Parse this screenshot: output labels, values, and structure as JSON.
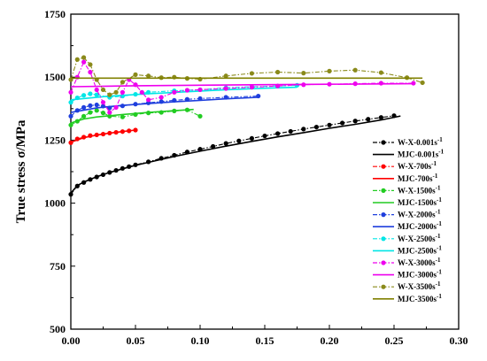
{
  "chart_data": {
    "type": "line",
    "xlabel": "",
    "ylabel": "True stress σ/MPa",
    "xlim": [
      0.0,
      0.3
    ],
    "ylim": [
      500,
      1750
    ],
    "xticks": [
      "0.00",
      "0.05",
      "0.10",
      "0.15",
      "0.20",
      "0.25",
      "0.30"
    ],
    "yticks": [
      "500",
      "750",
      "1000",
      "1250",
      "1500",
      "1750"
    ],
    "grid": false,
    "legend_position": "right",
    "series": [
      {
        "name": "W-X-0.001s",
        "sup": "-1",
        "color": "#000000",
        "style": "dashdot",
        "marker": "circle",
        "x": [
          0.0,
          0.005,
          0.01,
          0.015,
          0.02,
          0.025,
          0.03,
          0.035,
          0.04,
          0.045,
          0.05,
          0.06,
          0.07,
          0.08,
          0.09,
          0.1,
          0.11,
          0.12,
          0.13,
          0.14,
          0.15,
          0.16,
          0.17,
          0.18,
          0.19,
          0.2,
          0.21,
          0.22,
          0.23,
          0.24,
          0.25
        ],
        "y": [
          1035,
          1068,
          1082,
          1094,
          1104,
          1113,
          1122,
          1130,
          1138,
          1145,
          1152,
          1164,
          1178,
          1190,
          1203,
          1214,
          1225,
          1237,
          1247,
          1257,
          1267,
          1276,
          1285,
          1294,
          1302,
          1310,
          1318,
          1326,
          1333,
          1340,
          1347
        ]
      },
      {
        "name": "MJC-0.001s",
        "sup": "-1",
        "color": "#000000",
        "style": "solid",
        "marker": "none",
        "x": [
          0.0,
          0.005,
          0.01,
          0.02,
          0.03,
          0.04,
          0.05,
          0.06,
          0.08,
          0.1,
          0.12,
          0.14,
          0.16,
          0.18,
          0.2,
          0.22,
          0.24,
          0.255
        ],
        "y": [
          1040,
          1070,
          1084,
          1105,
          1122,
          1136,
          1150,
          1162,
          1185,
          1206,
          1226,
          1245,
          1263,
          1280,
          1297,
          1313,
          1330,
          1346
        ]
      },
      {
        "name": "W-X-700s",
        "sup": "-1",
        "color": "#ff0000",
        "style": "dashdot",
        "marker": "circle",
        "x": [
          0.0,
          0.005,
          0.01,
          0.015,
          0.02,
          0.025,
          0.03,
          0.035,
          0.04,
          0.045,
          0.05
        ],
        "y": [
          1240,
          1255,
          1262,
          1268,
          1271,
          1274,
          1278,
          1281,
          1284,
          1287,
          1290
        ]
      },
      {
        "name": "MJC-700s",
        "sup": "-1",
        "color": "#ff0000",
        "style": "solid",
        "marker": "none",
        "x": [
          0.0,
          0.01,
          0.02,
          0.03,
          0.04,
          0.05
        ],
        "y": [
          1242,
          1260,
          1270,
          1278,
          1284,
          1290
        ]
      },
      {
        "name": "W-X-1500s",
        "sup": "-1",
        "color": "#22cc22",
        "style": "dashdot",
        "marker": "circle",
        "x": [
          0.0,
          0.005,
          0.01,
          0.015,
          0.02,
          0.025,
          0.03,
          0.04,
          0.05,
          0.06,
          0.07,
          0.08,
          0.09,
          0.1
        ],
        "y": [
          1310,
          1325,
          1345,
          1360,
          1368,
          1358,
          1345,
          1342,
          1352,
          1358,
          1360,
          1366,
          1370,
          1345
        ]
      },
      {
        "name": "MJC-1500s",
        "sup": "-1",
        "color": "#22cc22",
        "style": "solid",
        "marker": "none",
        "x": [
          0.0,
          0.01,
          0.02,
          0.04,
          0.06,
          0.08,
          0.095
        ],
        "y": [
          1318,
          1334,
          1342,
          1352,
          1360,
          1367,
          1372
        ]
      },
      {
        "name": "W-X-2000s",
        "sup": "-1",
        "color": "#1f3fdd",
        "style": "dashdot",
        "marker": "circle",
        "x": [
          0.0,
          0.005,
          0.01,
          0.015,
          0.02,
          0.025,
          0.03,
          0.04,
          0.05,
          0.06,
          0.07,
          0.08,
          0.09,
          0.1,
          0.12,
          0.145
        ],
        "y": [
          1345,
          1368,
          1380,
          1387,
          1390,
          1385,
          1378,
          1386,
          1393,
          1398,
          1403,
          1408,
          1412,
          1415,
          1420,
          1425
        ]
      },
      {
        "name": "MJC-2000s",
        "sup": "-1",
        "color": "#1f3fdd",
        "style": "solid",
        "marker": "none",
        "x": [
          0.0,
          0.02,
          0.04,
          0.06,
          0.08,
          0.1,
          0.12,
          0.145
        ],
        "y": [
          1360,
          1378,
          1388,
          1395,
          1402,
          1408,
          1414,
          1420
        ]
      },
      {
        "name": "W-X-2500s",
        "sup": "-1",
        "color": "#00e6e6",
        "style": "dashdot",
        "marker": "circle",
        "x": [
          0.0,
          0.005,
          0.01,
          0.015,
          0.02,
          0.03,
          0.04,
          0.05,
          0.06,
          0.08,
          0.1,
          0.12,
          0.14,
          0.16,
          0.175
        ],
        "y": [
          1400,
          1418,
          1428,
          1434,
          1430,
          1420,
          1425,
          1432,
          1440,
          1446,
          1450,
          1458,
          1462,
          1465,
          1468
        ]
      },
      {
        "name": "MJC-2500s",
        "sup": "-1",
        "color": "#00e6e6",
        "style": "solid",
        "marker": "none",
        "x": [
          0.0,
          0.03,
          0.06,
          0.09,
          0.12,
          0.15,
          0.175
        ],
        "y": [
          1410,
          1425,
          1434,
          1442,
          1450,
          1456,
          1460
        ]
      },
      {
        "name": "W-X-3000s",
        "sup": "-1",
        "color": "#ee00ee",
        "style": "dashdot",
        "marker": "circle",
        "x": [
          0.0,
          0.005,
          0.01,
          0.015,
          0.02,
          0.025,
          0.03,
          0.035,
          0.04,
          0.045,
          0.05,
          0.055,
          0.06,
          0.07,
          0.08,
          0.09,
          0.1,
          0.12,
          0.14,
          0.16,
          0.18,
          0.2,
          0.22,
          0.24,
          0.265
        ],
        "y": [
          1440,
          1500,
          1560,
          1520,
          1450,
          1400,
          1360,
          1380,
          1440,
          1490,
          1470,
          1440,
          1410,
          1420,
          1440,
          1448,
          1450,
          1455,
          1460,
          1465,
          1470,
          1472,
          1474,
          1476,
          1476
        ]
      },
      {
        "name": "MJC-3000s",
        "sup": "-1",
        "color": "#ee00ee",
        "style": "solid",
        "marker": "none",
        "x": [
          0.0,
          0.05,
          0.1,
          0.15,
          0.2,
          0.265
        ],
        "y": [
          1462,
          1466,
          1468,
          1470,
          1472,
          1474
        ]
      },
      {
        "name": "W-X-3500s",
        "sup": "-1",
        "color": "#8a8a1a",
        "style": "dashdot",
        "marker": "circle",
        "x": [
          0.0,
          0.005,
          0.01,
          0.015,
          0.02,
          0.025,
          0.03,
          0.035,
          0.04,
          0.05,
          0.06,
          0.07,
          0.08,
          0.09,
          0.1,
          0.12,
          0.14,
          0.16,
          0.18,
          0.2,
          0.22,
          0.24,
          0.26,
          0.272
        ],
        "y": [
          1490,
          1570,
          1578,
          1550,
          1490,
          1450,
          1430,
          1440,
          1480,
          1510,
          1505,
          1498,
          1500,
          1495,
          1492,
          1505,
          1515,
          1520,
          1516,
          1524,
          1528,
          1518,
          1498,
          1478
        ]
      },
      {
        "name": "MJC-3500s",
        "sup": "-1",
        "color": "#808000",
        "style": "solid",
        "marker": "none",
        "x": [
          0.0,
          0.272
        ],
        "y": [
          1496,
          1496
        ]
      }
    ]
  }
}
